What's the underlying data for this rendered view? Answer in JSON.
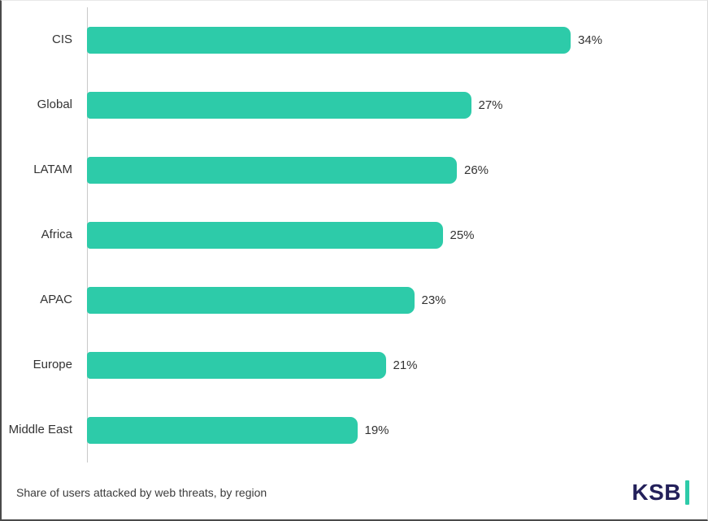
{
  "chart_data": {
    "type": "bar",
    "orientation": "horizontal",
    "title": "",
    "xlabel": "",
    "ylabel": "",
    "xlim": [
      0,
      40
    ],
    "grid": false,
    "legend": "none",
    "categories": [
      "CIS",
      "Global",
      "LATAM",
      "Africa",
      "APAC",
      "Europe",
      "Middle East"
    ],
    "values": [
      34,
      27,
      26,
      25,
      23,
      21,
      19
    ],
    "value_labels": [
      "34%",
      "27%",
      "26%",
      "25%",
      "23%",
      "21%",
      "19%"
    ],
    "bar_color": "#2dcba9"
  },
  "footer": {
    "caption": "Share of users attacked by web threats, by region",
    "logo_text": "KSB",
    "logo_mark": "vertical-bar",
    "logo_mark_color": "#2dcba9"
  },
  "colors": {
    "bar": "#2dcba9",
    "text": "#333333",
    "logo_text": "#23205a",
    "axis_line": "#c9c9c9"
  }
}
